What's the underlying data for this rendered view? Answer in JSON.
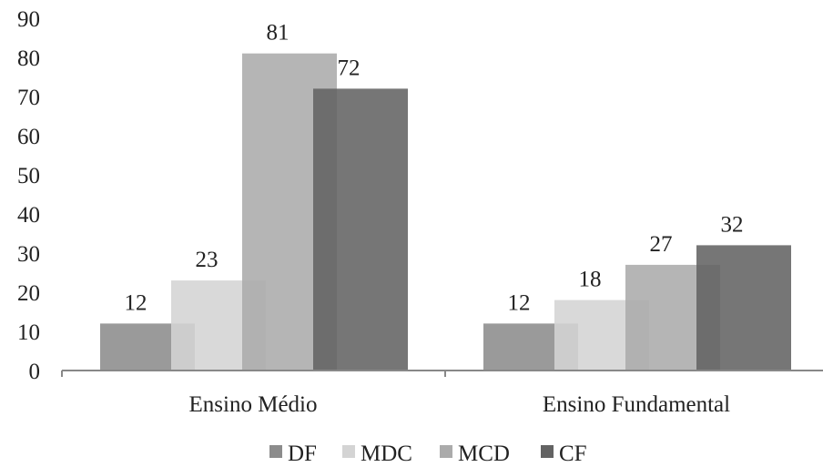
{
  "chart_data": {
    "type": "bar",
    "categories": [
      "Ensino Médio",
      "Ensino Fundamental"
    ],
    "series": [
      {
        "name": "DF",
        "values": [
          12,
          12
        ],
        "color": "#8c8c8c"
      },
      {
        "name": "MDC",
        "values": [
          23,
          18
        ],
        "color": "#d4d4d4"
      },
      {
        "name": "MCD",
        "values": [
          81,
          27
        ],
        "color": "#ababab"
      },
      {
        "name": "CF",
        "values": [
          72,
          32
        ],
        "color": "#636363"
      }
    ],
    "title": "",
    "xlabel": "",
    "ylabel": "",
    "ylim": [
      0,
      90
    ],
    "yticks": [
      "0",
      "10",
      "20",
      "30",
      "40",
      "50",
      "60",
      "70",
      "80",
      "90"
    ],
    "grid": false,
    "legend_position": "bottom",
    "bars_overlap": true,
    "data_labels": true
  }
}
